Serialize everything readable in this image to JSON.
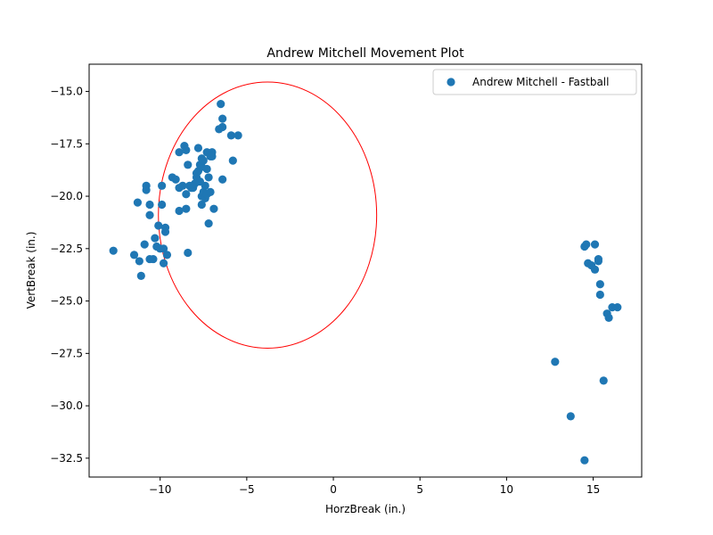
{
  "chart_data": {
    "type": "scatter",
    "title": "Andrew Mitchell Movement Plot",
    "xlabel": "HorzBreak (in.)",
    "ylabel": "VertBreak (in.)",
    "xlim": [
      -14.1,
      17.8
    ],
    "ylim": [
      -33.4,
      -13.7
    ],
    "xticks": [
      -10,
      -5,
      0,
      5,
      10,
      15
    ],
    "xtick_labels": [
      "−10",
      "−5",
      "0",
      "5",
      "10",
      "15"
    ],
    "yticks": [
      -15.0,
      -17.5,
      -20.0,
      -22.5,
      -25.0,
      -27.5,
      -30.0,
      -32.5
    ],
    "ytick_labels": [
      "−15.0",
      "−17.5",
      "−20.0",
      "−22.5",
      "−25.0",
      "−27.5",
      "−30.0",
      "−32.5"
    ],
    "grid": false,
    "legend_position": "top-right",
    "series": [
      {
        "name": "Andrew Mitchell - Fastball",
        "color": "#1f77b4",
        "points": [
          [
            -12.7,
            -22.6
          ],
          [
            -11.5,
            -22.8
          ],
          [
            -11.2,
            -23.1
          ],
          [
            -11.1,
            -23.8
          ],
          [
            -11.3,
            -20.3
          ],
          [
            -10.9,
            -22.3
          ],
          [
            -10.8,
            -19.5
          ],
          [
            -10.8,
            -19.7
          ],
          [
            -10.6,
            -20.4
          ],
          [
            -10.6,
            -20.9
          ],
          [
            -10.6,
            -23.0
          ],
          [
            -10.4,
            -23.0
          ],
          [
            -10.3,
            -22.0
          ],
          [
            -10.2,
            -22.4
          ],
          [
            -10.1,
            -21.4
          ],
          [
            -10.0,
            -22.5
          ],
          [
            -9.9,
            -20.4
          ],
          [
            -9.9,
            -19.5
          ],
          [
            -9.8,
            -22.5
          ],
          [
            -9.8,
            -23.2
          ],
          [
            -9.7,
            -21.5
          ],
          [
            -9.7,
            -21.7
          ],
          [
            -9.6,
            -22.8
          ],
          [
            -9.3,
            -19.1
          ],
          [
            -9.1,
            -19.2
          ],
          [
            -8.9,
            -20.7
          ],
          [
            -8.9,
            -17.9
          ],
          [
            -8.9,
            -19.6
          ],
          [
            -8.7,
            -19.5
          ],
          [
            -8.6,
            -17.6
          ],
          [
            -8.5,
            -17.8
          ],
          [
            -8.5,
            -19.9
          ],
          [
            -8.5,
            -20.6
          ],
          [
            -8.4,
            -22.7
          ],
          [
            -8.4,
            -18.5
          ],
          [
            -8.3,
            -19.5
          ],
          [
            -8.2,
            -19.6
          ],
          [
            -8.1,
            -19.6
          ],
          [
            -8.0,
            -19.4
          ],
          [
            -7.9,
            -19.1
          ],
          [
            -7.9,
            -18.9
          ],
          [
            -7.8,
            -17.7
          ],
          [
            -7.8,
            -18.8
          ],
          [
            -7.7,
            -18.5
          ],
          [
            -7.7,
            -19.3
          ],
          [
            -7.6,
            -18.2
          ],
          [
            -7.6,
            -18.6
          ],
          [
            -7.6,
            -20.0
          ],
          [
            -7.6,
            -20.4
          ],
          [
            -7.5,
            -19.8
          ],
          [
            -7.5,
            -18.3
          ],
          [
            -7.4,
            -20.1
          ],
          [
            -7.4,
            -19.5
          ],
          [
            -7.3,
            -18.7
          ],
          [
            -7.3,
            -17.9
          ],
          [
            -7.3,
            -19.9
          ],
          [
            -7.2,
            -21.3
          ],
          [
            -7.2,
            -19.1
          ],
          [
            -7.1,
            -19.8
          ],
          [
            -7.1,
            -18.1
          ],
          [
            -7.0,
            -17.9
          ],
          [
            -7.0,
            -18.1
          ],
          [
            -6.9,
            -20.6
          ],
          [
            -6.6,
            -16.8
          ],
          [
            -6.5,
            -15.6
          ],
          [
            -6.4,
            -16.3
          ],
          [
            -6.4,
            -16.7
          ],
          [
            -6.4,
            -19.2
          ],
          [
            -5.9,
            -17.1
          ],
          [
            -5.8,
            -18.3
          ],
          [
            -5.5,
            -17.1
          ],
          [
            12.8,
            -27.9
          ],
          [
            13.7,
            -30.5
          ],
          [
            14.5,
            -32.6
          ],
          [
            14.5,
            -22.4
          ],
          [
            14.6,
            -22.3
          ],
          [
            14.7,
            -23.2
          ],
          [
            14.9,
            -23.3
          ],
          [
            15.1,
            -23.5
          ],
          [
            15.1,
            -22.3
          ],
          [
            15.3,
            -23.1
          ],
          [
            15.3,
            -23.0
          ],
          [
            15.4,
            -24.7
          ],
          [
            15.4,
            -24.2
          ],
          [
            15.6,
            -28.8
          ],
          [
            15.8,
            -25.6
          ],
          [
            15.9,
            -25.8
          ],
          [
            16.1,
            -25.3
          ],
          [
            16.4,
            -25.3
          ]
        ]
      }
    ],
    "annotations": [
      {
        "type": "ellipse",
        "center": [
          -3.8,
          -20.9
        ],
        "rx": 6.3,
        "ry": 6.35,
        "color": "#ff0000"
      }
    ]
  }
}
